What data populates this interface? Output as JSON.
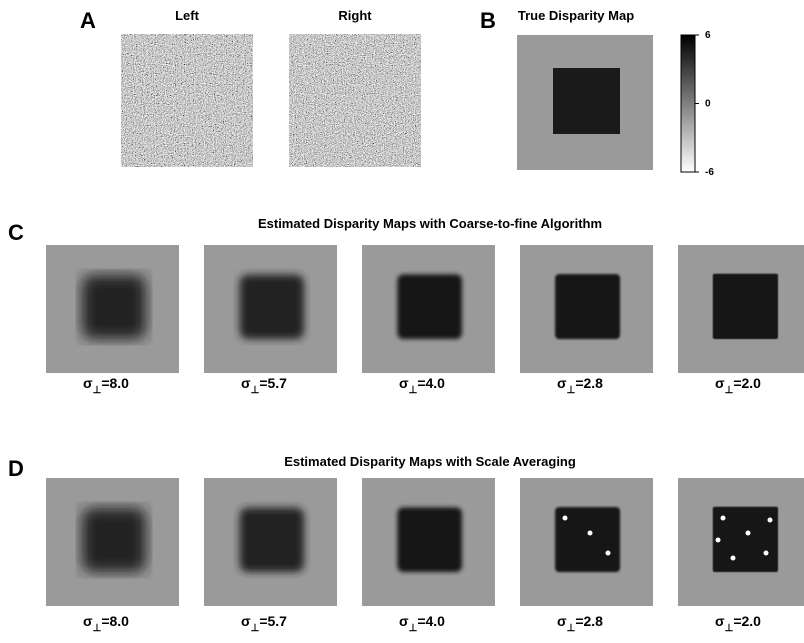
{
  "panels": {
    "A": {
      "label": "A",
      "left_title": "Left",
      "right_title": "Right"
    },
    "B": {
      "label": "B",
      "title": "True Disparity Map",
      "colorbar_ticks": [
        6,
        0,
        -6
      ]
    },
    "C": {
      "label": "C",
      "title": "Estimated Disparity Maps with Coarse-to-fine Algorithm",
      "maps": [
        {
          "symbol": "σ",
          "subscript": "⊥",
          "value_text": "=8.0"
        },
        {
          "symbol": "σ",
          "subscript": "⊥",
          "value_text": "=5.7"
        },
        {
          "symbol": "σ",
          "subscript": "⊥",
          "value_text": "=4.0"
        },
        {
          "symbol": "σ",
          "subscript": "⊥",
          "value_text": "=2.8"
        },
        {
          "symbol": "σ",
          "subscript": "⊥",
          "value_text": "=2.0"
        }
      ]
    },
    "D": {
      "label": "D",
      "title": "Estimated Disparity Maps with Scale Averaging",
      "maps": [
        {
          "symbol": "σ",
          "subscript": "⊥",
          "value_text": "=8.0"
        },
        {
          "symbol": "σ",
          "subscript": "⊥",
          "value_text": "=5.7"
        },
        {
          "symbol": "σ",
          "subscript": "⊥",
          "value_text": "=4.0"
        },
        {
          "symbol": "σ",
          "subscript": "⊥",
          "value_text": "=2.8"
        },
        {
          "symbol": "σ",
          "subscript": "⊥",
          "value_text": "=2.0"
        }
      ]
    }
  }
}
